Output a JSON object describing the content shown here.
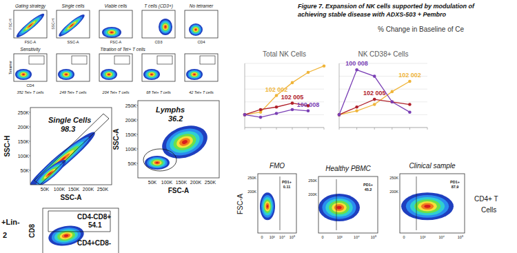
{
  "gating": {
    "row1_titles": [
      "Gating strategy",
      "Single cells",
      "Viable cells",
      "T cells (CD3+)",
      "No tetramer"
    ],
    "row1_x_labels": [
      "FSC-A",
      "SSC-A",
      "FSC-A",
      "CD3",
      "CD4"
    ],
    "row1_y_labels": [
      "FSC-H",
      "SSC-H"
    ],
    "row2_titles": [
      "Sensitivity",
      "Titration of Tet+ T cells"
    ],
    "row2_x_label": "CD4",
    "row2_y_label": "Tetramer",
    "captions": [
      "352 Tet+ T cells",
      "249 Tet+ T cells",
      "204 Tet+ T cells",
      "68 Tet+ T cells",
      "42 Tet+ T cells"
    ]
  },
  "flow": {
    "single": {
      "gate": "Single Cells",
      "value": 98.3,
      "y_label": "SSC-H",
      "x_label": "SSC-A",
      "y_ticks": [
        "250K",
        "200K",
        "150K",
        "100K",
        "50K"
      ],
      "x_ticks": [
        "50K",
        "100K",
        "150K",
        "200K",
        "250K"
      ]
    },
    "lymphs": {
      "gate": "Lymphs",
      "value": 36.2,
      "y_label": "SSC-A",
      "x_label": "FSC-A",
      "y_ticks": [
        "250K",
        "200K",
        "150K",
        "100K",
        "50K"
      ],
      "x_ticks": [
        "50K",
        "100K",
        "150K",
        "200K",
        "250K"
      ]
    },
    "cd8": {
      "y_label": "CD8",
      "gate1": "CD4-CD8+",
      "value1": 54.1,
      "gate2": "CD4+CD8-"
    },
    "fragment": [
      "+Lin-",
      "2"
    ]
  },
  "figure7": {
    "title": [
      "Figure 7. Expansion of NK cells supported by modulation of",
      "achieving stable disease with ADXS-503 + Pembro"
    ],
    "subtitle": "% Change in Baseline of Ce"
  },
  "chart_data": [
    {
      "type": "line",
      "title": "Total NK Cells",
      "categories": [
        null,
        null,
        null,
        null,
        null,
        null
      ],
      "ylim": [
        -100,
        400
      ],
      "yticks": [
        -100,
        0,
        100,
        200,
        300,
        400
      ],
      "grid": true,
      "tick_labels": false,
      "marker": "circle",
      "series": [
        {
          "name": "102 002",
          "color": "#f0b53a",
          "values": [
            0,
            20,
            150,
            250,
            330,
            380
          ]
        },
        {
          "name": "102 005",
          "color": "#b0202a",
          "values": [
            0,
            40,
            60,
            90,
            70,
            null
          ]
        },
        {
          "name": "100 008",
          "color": "#7a3fb5",
          "values": [
            0,
            -20,
            10,
            40,
            30,
            null
          ]
        }
      ]
    },
    {
      "type": "line",
      "title": "NK CD38+ Cells",
      "categories": [
        null,
        null,
        null,
        null,
        null,
        null
      ],
      "ylim": [
        -100,
        400
      ],
      "yticks": [
        -100,
        0,
        100,
        200,
        300,
        400
      ],
      "grid": true,
      "tick_labels": false,
      "marker": "circle",
      "series": [
        {
          "name": "102 002",
          "color": "#f0b53a",
          "values": [
            0,
            30,
            80,
            180,
            260,
            null
          ]
        },
        {
          "name": "102 005",
          "color": "#b0202a",
          "values": [
            0,
            60,
            120,
            100,
            80,
            null
          ]
        },
        {
          "name": "100 008",
          "color": "#7a3fb5",
          "values": [
            0,
            350,
            300,
            100,
            20,
            null
          ]
        }
      ]
    }
  ],
  "pd1": {
    "y_label": "FSC-A",
    "y_ticks": [
      "250K",
      "200K"
    ],
    "x_ticks": [
      "0",
      "10³",
      "10⁴",
      "10⁵"
    ],
    "panels": [
      {
        "title": "FMO",
        "gate": "PD1+",
        "value": 0.11
      },
      {
        "title": "Healthy PBMC",
        "gate": "PD1+",
        "value": 45.2
      },
      {
        "title": "Clinical sample",
        "gate": "PD1+",
        "value": 87.9
      }
    ],
    "row_label": [
      "CD4+ T",
      "Cells"
    ]
  }
}
